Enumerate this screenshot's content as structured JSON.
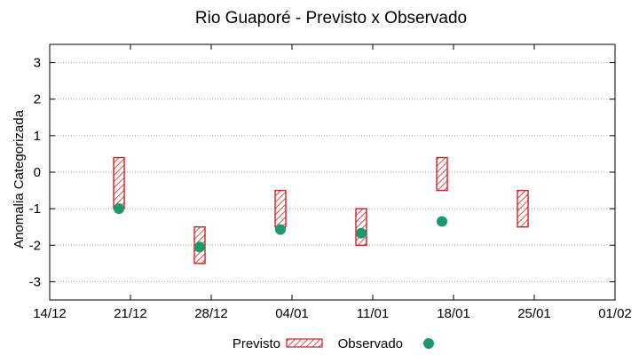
{
  "chart_data": {
    "type": "interval-scatter",
    "title": "Rio Guaporé - Previsto x Observado",
    "ylabel": "Anomalia Categorizada",
    "xlabel": "",
    "x_ticks": [
      "14/12",
      "21/12",
      "28/12",
      "04/01",
      "11/01",
      "18/01",
      "25/01",
      "01/02"
    ],
    "xlim": [
      "14/12",
      "01/02"
    ],
    "ylim": [
      -3.5,
      3.5
    ],
    "y_ticks": [
      -3,
      -2,
      -1,
      0,
      1,
      2,
      3
    ],
    "grid": "horizontal dotted",
    "legend_position": "bottom",
    "series": [
      {
        "name": "Previsto",
        "style": "hatched-box",
        "color": "#cc2222",
        "intervals": [
          {
            "x": "20/12",
            "low": -1.0,
            "high": 0.4
          },
          {
            "x": "27/12",
            "low": -2.5,
            "high": -1.5
          },
          {
            "x": "03/01",
            "low": -1.5,
            "high": -0.5
          },
          {
            "x": "10/01",
            "low": -2.0,
            "high": -1.0
          },
          {
            "x": "17/01",
            "low": -0.5,
            "high": 0.4
          },
          {
            "x": "24/01",
            "low": -1.5,
            "high": -0.5
          }
        ]
      },
      {
        "name": "Observado",
        "style": "point",
        "color": "#1a9a6c",
        "points": [
          {
            "x": "20/12",
            "y": -1.0
          },
          {
            "x": "27/12",
            "y": -2.05
          },
          {
            "x": "03/01",
            "y": -1.57
          },
          {
            "x": "10/01",
            "y": -1.67
          },
          {
            "x": "17/01",
            "y": -1.35
          }
        ]
      }
    ]
  },
  "legend": {
    "previsto": "Previsto",
    "observado": "Observado"
  }
}
